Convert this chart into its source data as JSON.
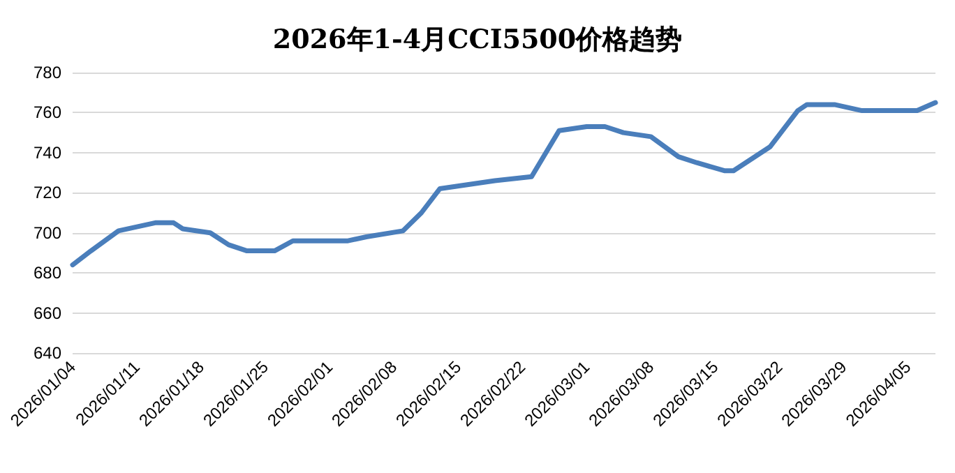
{
  "chart_data": {
    "type": "line",
    "title": "2026年1-4月CCI5500价格趋势",
    "x": [
      "2026-01-04",
      "2026-01-06",
      "2026-01-09",
      "2026-01-11",
      "2026-01-13",
      "2026-01-15",
      "2026-01-16",
      "2026-01-19",
      "2026-01-21",
      "2026-01-23",
      "2026-01-26",
      "2026-01-28",
      "2026-01-30",
      "2026-02-03",
      "2026-02-05",
      "2026-02-09",
      "2026-02-11",
      "2026-02-13",
      "2026-02-19",
      "2026-02-23",
      "2026-02-26",
      "2026-03-01",
      "2026-03-03",
      "2026-03-05",
      "2026-03-08",
      "2026-03-11",
      "2026-03-13",
      "2026-03-16",
      "2026-03-17",
      "2026-03-19",
      "2026-03-21",
      "2026-03-24",
      "2026-03-25",
      "2026-03-28",
      "2026-03-31",
      "2026-04-06",
      "2026-04-08"
    ],
    "series": [
      {
        "color": "#4a7ebb",
        "values": [
          684,
          691,
          701,
          703,
          705,
          705,
          702,
          700,
          694,
          691,
          691,
          696,
          696,
          696,
          698,
          701,
          710,
          722,
          726,
          728,
          751,
          753,
          753,
          750,
          748,
          738,
          735,
          731,
          731,
          737,
          743,
          761,
          764,
          764,
          761,
          761,
          765
        ]
      }
    ],
    "xlim": [
      "2026-01-04",
      "2026-04-08"
    ],
    "xticks": [
      {
        "value": "2026-01-04",
        "label": "2026/01/04"
      },
      {
        "value": "2026-01-11",
        "label": "2026/01/11"
      },
      {
        "value": "2026-01-18",
        "label": "2026/01/18"
      },
      {
        "value": "2026-01-25",
        "label": "2026/01/25"
      },
      {
        "value": "2026-02-01",
        "label": "2026/02/01"
      },
      {
        "value": "2026-02-08",
        "label": "2026/02/08"
      },
      {
        "value": "2026-02-15",
        "label": "2026/02/15"
      },
      {
        "value": "2026-02-22",
        "label": "2026/02/22"
      },
      {
        "value": "2026-03-01",
        "label": "2026/03/01"
      },
      {
        "value": "2026-03-08",
        "label": "2026/03/08"
      },
      {
        "value": "2026-03-15",
        "label": "2026/03/15"
      },
      {
        "value": "2026-03-22",
        "label": "2026/03/22"
      },
      {
        "value": "2026-03-29",
        "label": "2026/03/29"
      },
      {
        "value": "2026-04-05",
        "label": "2026/04/05"
      }
    ],
    "ylim": [
      640,
      780
    ],
    "yticks": [
      640,
      660,
      680,
      700,
      720,
      740,
      760,
      780
    ],
    "grid": "y",
    "marker": "none",
    "line_style": "solid"
  }
}
